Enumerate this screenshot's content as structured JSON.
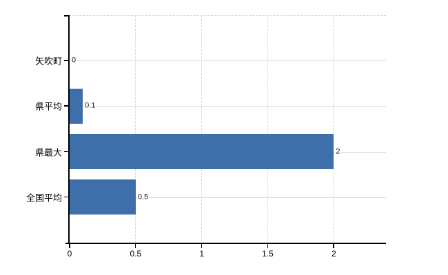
{
  "chart_data": {
    "type": "bar",
    "orientation": "horizontal",
    "title": "",
    "xlabel": "",
    "ylabel": "",
    "categories": [
      "矢吹町",
      "県平均",
      "県最大",
      "全国平均"
    ],
    "values": [
      0,
      0.1,
      2,
      0.5
    ],
    "value_labels": [
      "0",
      "0.1",
      "2",
      "0.5"
    ],
    "x_ticks": [
      0,
      0.5,
      1,
      1.5,
      2
    ],
    "x_tick_labels": [
      "0",
      "0.5",
      "1",
      "1.5",
      "2"
    ],
    "xlim": [
      0,
      2.4
    ],
    "grid": true,
    "legend": null,
    "colors": {
      "bar": "#3f6fab",
      "axis": "#000000",
      "gridline_horizontal": "#d4dad4",
      "gridline_vertical": "#d6d6d6",
      "text": "#000000",
      "background": "#ffffff"
    }
  }
}
